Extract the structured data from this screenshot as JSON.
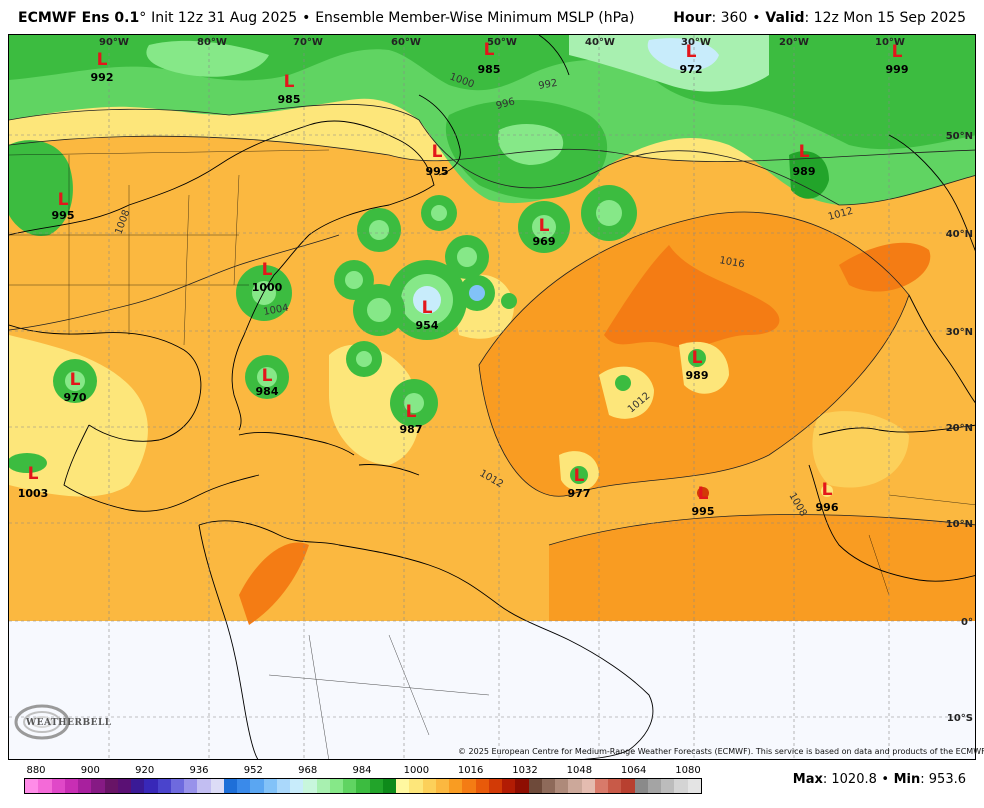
{
  "header": {
    "left": {
      "model": "ECMWF Ens 0.1",
      "deg": "°",
      "init": "Init 12z 31 Aug 2025",
      "sep": "•",
      "product": "Ensemble Member-Wise Minimum MSLP (hPa)"
    },
    "right": {
      "hour_label": "Hour",
      "hour_value": ": 360",
      "sep": "•",
      "valid_label": "Valid",
      "valid_value": ": 12z Mon 15 Sep 2025"
    }
  },
  "map": {
    "lon_labels": [
      "90°W",
      "80°W",
      "70°W",
      "60°W",
      "50°W",
      "40°W",
      "30°W",
      "20°W",
      "10°W"
    ],
    "lat_labels": [
      "50°N",
      "40°N",
      "30°N",
      "20°N",
      "10°N",
      "0°",
      "10°S"
    ],
    "lows": [
      {
        "mark": "L",
        "value": "992"
      },
      {
        "mark": "L",
        "value": "985"
      },
      {
        "mark": "L",
        "value": "985"
      },
      {
        "mark": "L",
        "value": "972"
      },
      {
        "mark": "L",
        "value": "999"
      },
      {
        "mark": "L",
        "value": "995"
      },
      {
        "mark": "L",
        "value": "989"
      },
      {
        "mark": "L",
        "value": "995"
      },
      {
        "mark": "L",
        "value": "969"
      },
      {
        "mark": "L",
        "value": "1000"
      },
      {
        "mark": "L",
        "value": "954"
      },
      {
        "mark": "L",
        "value": "970"
      },
      {
        "mark": "L",
        "value": "984"
      },
      {
        "mark": "L",
        "value": "987"
      },
      {
        "mark": "L",
        "value": "989"
      },
      {
        "mark": "L",
        "value": "1003"
      },
      {
        "mark": "L",
        "value": "977"
      },
      {
        "mark": "L",
        "value": "995"
      },
      {
        "mark": "L",
        "value": "996"
      }
    ],
    "isobar_labels": [
      "1012",
      "1008",
      "1004",
      "996",
      "992",
      "1000",
      "1016",
      "1012",
      "1008",
      "1012"
    ],
    "copyright": "© 2025 European Centre for Medium-Range Weather Forecasts (ECMWF). This service is based on data and products of the ECMWF.",
    "logo_text": "WEATHERBELL"
  },
  "colorbar": {
    "labels": [
      "880",
      "900",
      "920",
      "936",
      "952",
      "968",
      "984",
      "1000",
      "1016",
      "1032",
      "1048",
      "1064",
      "1080"
    ],
    "colors": [
      "#ff8ce8",
      "#f46ad8",
      "#e048c8",
      "#c82eb4",
      "#a8209e",
      "#861a84",
      "#681466",
      "#5a1074",
      "#3a1a96",
      "#3828b8",
      "#4a44cc",
      "#6e6ade",
      "#9892ea",
      "#c2bef2",
      "#dcdcf6",
      "#1e6fd8",
      "#3a8aea",
      "#5aa6f2",
      "#82c2f8",
      "#aad8fb",
      "#c8ecfb",
      "#c8f6dc",
      "#a8f0b0",
      "#86e888",
      "#60d462",
      "#3cbc40",
      "#22a42a",
      "#0e8a1a",
      "#fff8a0",
      "#fde67a",
      "#fcd05a",
      "#fbb840",
      "#f99c22",
      "#f47c14",
      "#e85a0a",
      "#d23a06",
      "#b21c04",
      "#8e0e02",
      "#6e4a3a",
      "#8e6a5a",
      "#ae8a7a",
      "#cca89a",
      "#e4bcb0",
      "#d87a6a",
      "#c85a48",
      "#b84030",
      "#8a8a8a",
      "#a4a4a4",
      "#bcbcbc",
      "#d4d4d4",
      "#e4e4e4"
    ],
    "stats": {
      "max_label": "Max",
      "max_value": ": 1020.8",
      "sep": "•",
      "min_label": "Min",
      "min_value": ": 953.6"
    }
  }
}
